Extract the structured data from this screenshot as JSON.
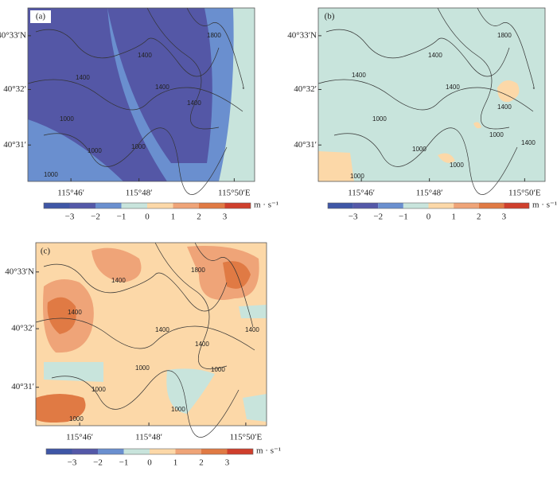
{
  "panels": [
    {
      "label": "(a)",
      "lat_labels": [
        "40°33′N",
        "40°32′",
        "40°31′"
      ],
      "lon_labels": [
        "115°46′",
        "115°48′",
        "115°50′E"
      ],
      "contour_labels": [
        "1400",
        "1800",
        "1400",
        "1400",
        "1400",
        "1000",
        "1000",
        "1000",
        "1000"
      ]
    },
    {
      "label": "(b)",
      "lat_labels": [
        "40°33′N",
        "40°32′",
        "40°31′"
      ],
      "lon_labels": [
        "115°46′",
        "115°48′",
        "115°50′E"
      ],
      "contour_labels": [
        "1400",
        "1800",
        "1400",
        "1400",
        "1400",
        "1000",
        "1000",
        "1000",
        "1000",
        "1000",
        "1400"
      ]
    },
    {
      "label": "(c)",
      "lat_labels": [
        "40°33′N",
        "40°32′",
        "40°31′"
      ],
      "lon_labels": [
        "115°46′",
        "115°48′",
        "115°50′E"
      ],
      "contour_labels": [
        "1400",
        "1800",
        "1400",
        "1400",
        "1400",
        "1000",
        "1000",
        "1000",
        "1000",
        "1000",
        "1400"
      ]
    }
  ],
  "colorbar": {
    "ticks": [
      "−3",
      "−2",
      "−1",
      "0",
      "1",
      "2",
      "3"
    ],
    "unit": "m · s⁻¹",
    "colors": [
      "#3f56a6",
      "#5458a8",
      "#6a8fcf",
      "#c8e4dc",
      "#fcd8a8",
      "#efa478",
      "#e07a44",
      "#cf3f2c"
    ]
  }
}
